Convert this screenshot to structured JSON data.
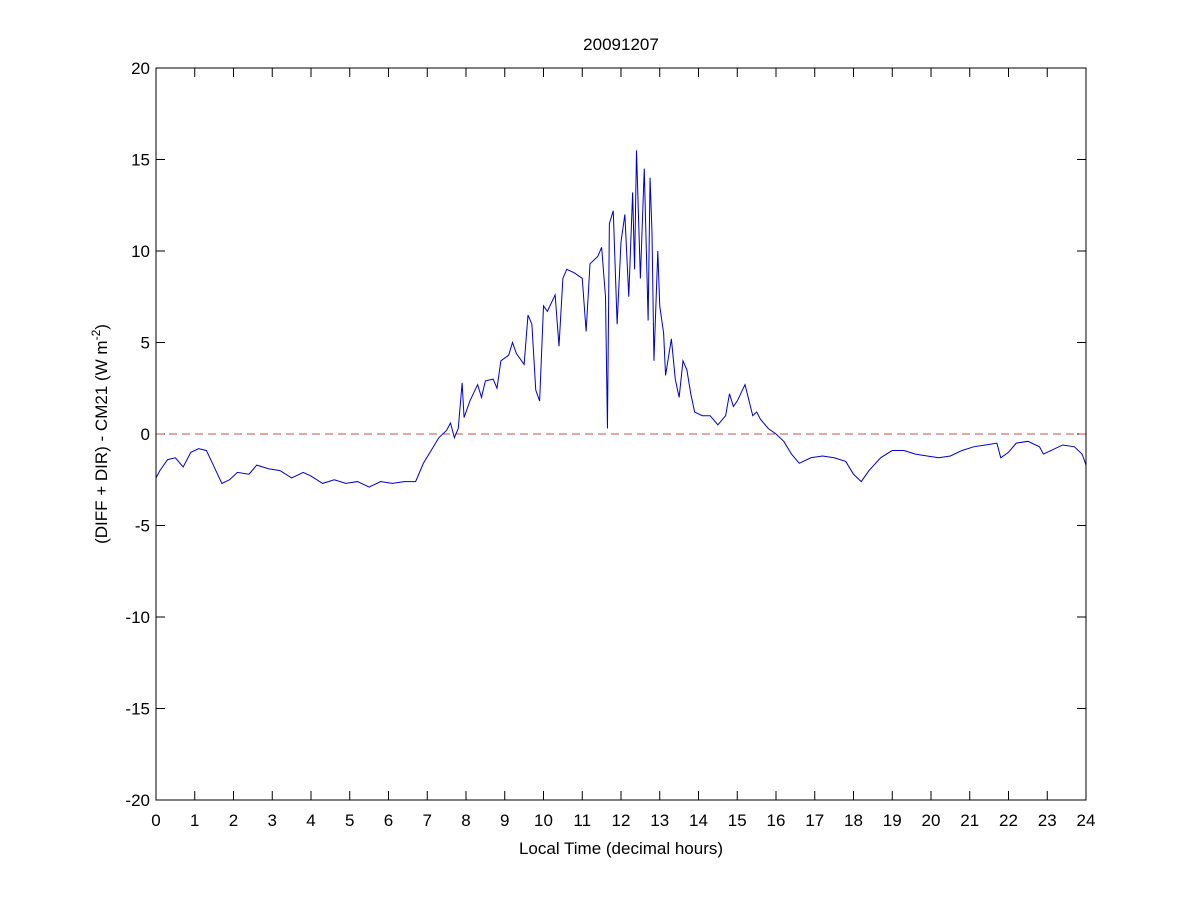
{
  "chart_data": {
    "type": "line",
    "title": "20091207",
    "xlabel": "Local Time (decimal hours)",
    "ylabel": [
      "(DIFF + DIR) - CM21 (W m",
      "-2",
      ")"
    ],
    "xlim": [
      0,
      24
    ],
    "ylim": [
      -20,
      20
    ],
    "xticks": [
      0,
      1,
      2,
      3,
      4,
      5,
      6,
      7,
      8,
      9,
      10,
      11,
      12,
      13,
      14,
      15,
      16,
      17,
      18,
      19,
      20,
      21,
      22,
      23,
      24
    ],
    "yticks": [
      -20,
      -15,
      -10,
      -5,
      0,
      5,
      10,
      15,
      20
    ],
    "reference_line": {
      "value": 0,
      "color": "#c0504d",
      "style": "dashed"
    },
    "series": [
      {
        "color": "#0000c8",
        "x": [
          0,
          0.1,
          0.3,
          0.5,
          0.7,
          0.9,
          1.1,
          1.3,
          1.5,
          1.7,
          1.9,
          2.1,
          2.4,
          2.6,
          2.9,
          3.2,
          3.5,
          3.8,
          4.0,
          4.3,
          4.6,
          4.9,
          5.2,
          5.5,
          5.8,
          6.1,
          6.4,
          6.7,
          6.9,
          7.1,
          7.3,
          7.5,
          7.6,
          7.7,
          7.8,
          7.9,
          7.95,
          8.1,
          8.3,
          8.4,
          8.5,
          8.7,
          8.8,
          8.9,
          9.1,
          9.2,
          9.3,
          9.5,
          9.6,
          9.7,
          9.8,
          9.9,
          10.0,
          10.1,
          10.3,
          10.4,
          10.5,
          10.6,
          10.8,
          11.0,
          11.1,
          11.2,
          11.4,
          11.5,
          11.6,
          11.65,
          11.7,
          11.8,
          11.9,
          12.0,
          12.1,
          12.2,
          12.3,
          12.35,
          12.4,
          12.5,
          12.6,
          12.7,
          12.75,
          12.8,
          12.85,
          12.95,
          13.0,
          13.1,
          13.15,
          13.3,
          13.4,
          13.5,
          13.6,
          13.7,
          13.8,
          13.9,
          14.1,
          14.3,
          14.5,
          14.7,
          14.8,
          14.9,
          15.0,
          15.2,
          15.4,
          15.5,
          15.6,
          15.8,
          16.0,
          16.2,
          16.4,
          16.6,
          16.9,
          17.2,
          17.5,
          17.8,
          18.0,
          18.2,
          18.4,
          18.7,
          19.0,
          19.3,
          19.6,
          19.9,
          20.2,
          20.5,
          20.8,
          21.1,
          21.4,
          21.7,
          21.8,
          22.0,
          22.2,
          22.5,
          22.8,
          22.9,
          23.1,
          23.4,
          23.7,
          23.9,
          24.0
        ],
        "values": [
          -2.4,
          -2.0,
          -1.4,
          -1.3,
          -1.8,
          -1.0,
          -0.8,
          -0.9,
          -1.8,
          -2.7,
          -2.5,
          -2.1,
          -2.2,
          -1.7,
          -1.9,
          -2.0,
          -2.4,
          -2.1,
          -2.3,
          -2.7,
          -2.5,
          -2.7,
          -2.6,
          -2.9,
          -2.6,
          -2.7,
          -2.6,
          -2.6,
          -1.6,
          -0.9,
          -0.2,
          0.2,
          0.6,
          -0.2,
          0.3,
          2.8,
          0.9,
          1.8,
          2.7,
          2.0,
          2.9,
          3.0,
          2.5,
          4.0,
          4.3,
          5.0,
          4.4,
          3.8,
          6.5,
          6.0,
          2.4,
          1.8,
          7.0,
          6.7,
          7.6,
          4.8,
          8.5,
          9.0,
          8.8,
          8.5,
          5.6,
          9.3,
          9.7,
          10.2,
          7.5,
          0.3,
          11.5,
          12.2,
          6.0,
          10.5,
          12.0,
          7.5,
          13.2,
          9.0,
          15.5,
          8.5,
          14.5,
          6.2,
          14.0,
          11.0,
          4.0,
          10.0,
          7.0,
          5.5,
          3.2,
          5.2,
          3.0,
          2.0,
          4.0,
          3.5,
          2.2,
          1.2,
          1.0,
          1.0,
          0.5,
          1.0,
          2.2,
          1.5,
          1.8,
          2.7,
          1.0,
          1.2,
          0.8,
          0.3,
          0.0,
          -0.4,
          -1.1,
          -1.6,
          -1.3,
          -1.2,
          -1.3,
          -1.5,
          -2.2,
          -2.6,
          -2.0,
          -1.3,
          -0.9,
          -0.9,
          -1.1,
          -1.2,
          -1.3,
          -1.2,
          -0.9,
          -0.7,
          -0.6,
          -0.5,
          -1.3,
          -1.0,
          -0.5,
          -0.4,
          -0.7,
          -1.1,
          -0.9,
          -0.6,
          -0.7,
          -1.1,
          -1.7
        ]
      }
    ]
  }
}
